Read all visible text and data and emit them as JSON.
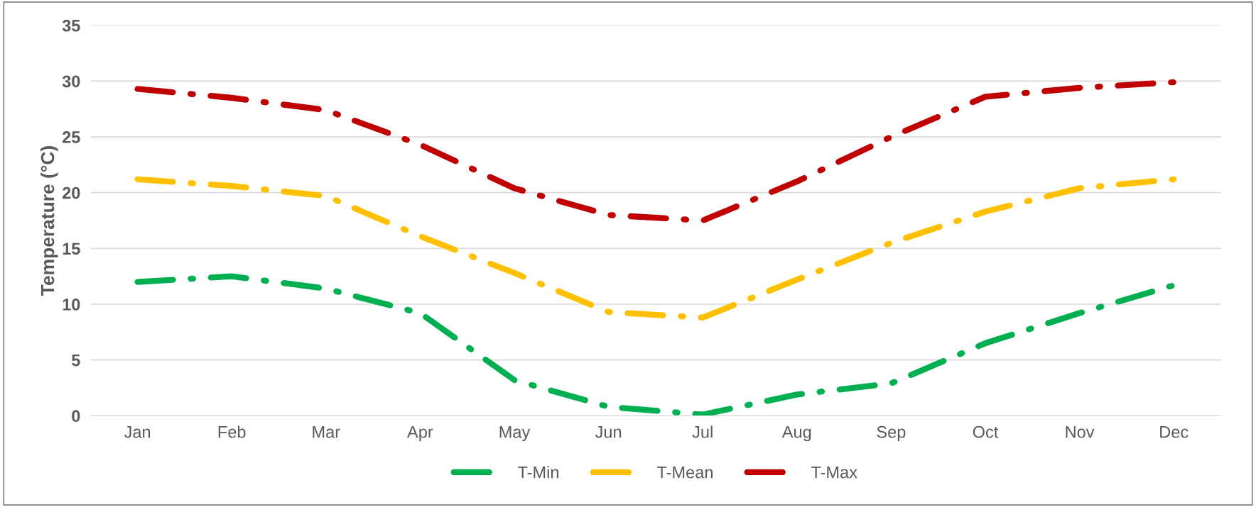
{
  "chart_data": {
    "type": "line",
    "ylabel": "Temperature (°C)",
    "categories": [
      "Jan",
      "Feb",
      "Mar",
      "Apr",
      "May",
      "Jun",
      "Jul",
      "Aug",
      "Sep",
      "Oct",
      "Nov",
      "Dec"
    ],
    "series": [
      {
        "name": "T-Min",
        "color": "#00b050",
        "values": [
          12.0,
          12.5,
          11.4,
          9.2,
          3.2,
          0.8,
          0.1,
          1.9,
          2.9,
          6.5,
          9.2,
          11.7
        ]
      },
      {
        "name": "T-Mean",
        "color": "#ffc000",
        "values": [
          21.2,
          20.6,
          19.7,
          16.1,
          12.8,
          9.3,
          8.8,
          12.2,
          15.5,
          18.3,
          20.4,
          21.2
        ]
      },
      {
        "name": "T-Max",
        "color": "#c00000",
        "values": [
          29.3,
          28.5,
          27.4,
          24.3,
          20.4,
          18.0,
          17.5,
          21.0,
          25.0,
          28.6,
          29.4,
          29.9
        ]
      }
    ],
    "ylim": [
      0,
      35
    ],
    "yticks": [
      0,
      5,
      10,
      15,
      20,
      25,
      30,
      35
    ],
    "grid": "y",
    "legend": "bottom",
    "line_style": "dashed",
    "marker": "none"
  }
}
